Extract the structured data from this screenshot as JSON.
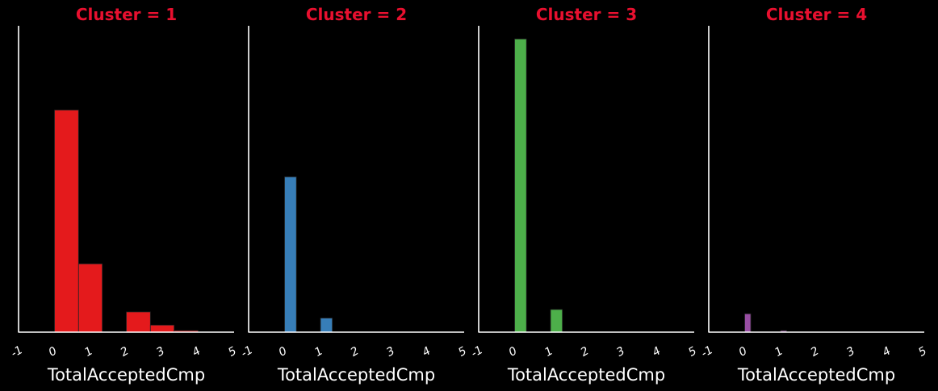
{
  "style": {
    "background": "#000000",
    "title_color": "#e8102f",
    "axis_color": "#ffffff",
    "text_color": "#ffffff"
  },
  "chart_data": [
    {
      "type": "bar",
      "title": "Cluster = 1",
      "xlabel": "TotalAcceptedCmp",
      "ylabel": "",
      "xlim": [
        -1,
        5
      ],
      "ylim": [
        0,
        100
      ],
      "xticks": [
        "-1",
        "0",
        "1",
        "2",
        "3",
        "4",
        "5"
      ],
      "color": "#e41a1c",
      "bins": [
        {
          "x0": 0.0,
          "x1": 0.67,
          "value": 72.5
        },
        {
          "x0": 0.67,
          "x1": 1.33,
          "value": 22.3
        },
        {
          "x0": 2.0,
          "x1": 2.67,
          "value": 6.6
        },
        {
          "x0": 2.67,
          "x1": 3.33,
          "value": 2.3
        },
        {
          "x0": 3.33,
          "x1": 4.0,
          "value": 0.5
        }
      ]
    },
    {
      "type": "bar",
      "title": "Cluster = 2",
      "xlabel": "TotalAcceptedCmp",
      "ylabel": "",
      "xlim": [
        -1,
        5
      ],
      "ylim": [
        0,
        100
      ],
      "xticks": [
        "-1",
        "0",
        "1",
        "2",
        "3",
        "4",
        "5"
      ],
      "color": "#377eb8",
      "bins": [
        {
          "x0": 0.0,
          "x1": 0.33,
          "value": 50.7
        },
        {
          "x0": 1.0,
          "x1": 1.33,
          "value": 4.6
        }
      ]
    },
    {
      "type": "bar",
      "title": "Cluster = 3",
      "xlabel": "TotalAcceptedCmp",
      "ylabel": "",
      "xlim": [
        -1,
        5
      ],
      "ylim": [
        0,
        100
      ],
      "xticks": [
        "-1",
        "0",
        "1",
        "2",
        "3",
        "4",
        "5"
      ],
      "color": "#4daf4a",
      "bins": [
        {
          "x0": 0.0,
          "x1": 0.33,
          "value": 95.7
        },
        {
          "x0": 1.0,
          "x1": 1.33,
          "value": 7.4
        }
      ]
    },
    {
      "type": "bar",
      "title": "Cluster = 4",
      "xlabel": "TotalAcceptedCmp",
      "ylabel": "",
      "xlim": [
        -1,
        5
      ],
      "ylim": [
        0,
        100
      ],
      "xticks": [
        "-1",
        "0",
        "1",
        "2",
        "3",
        "4",
        "5"
      ],
      "color": "#984ea3",
      "bins": [
        {
          "x0": 0.0,
          "x1": 0.17,
          "value": 6.0
        },
        {
          "x0": 1.0,
          "x1": 1.17,
          "value": 0.5
        }
      ]
    }
  ]
}
